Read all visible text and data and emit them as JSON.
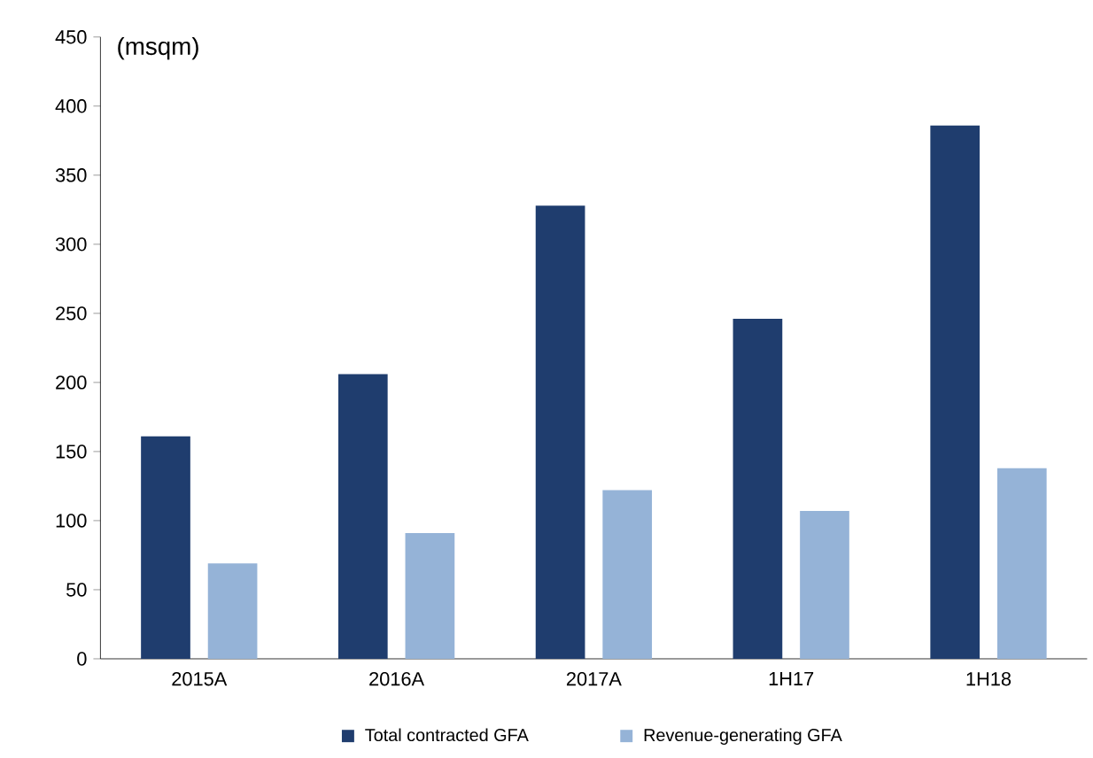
{
  "chart_data": {
    "type": "bar",
    "ylabel": "(msqm)",
    "categories": [
      "2015A",
      "2016A",
      "2017A",
      "1H17",
      "1H18"
    ],
    "series": [
      {
        "name": "Total contracted GFA",
        "color": "#1f3d6e",
        "values": [
          161,
          206,
          328,
          246,
          386
        ]
      },
      {
        "name": "Revenue-generating GFA",
        "color": "#95b3d7",
        "values": [
          69,
          91,
          122,
          107,
          138
        ]
      }
    ],
    "ylim": [
      0,
      450
    ],
    "yticks": [
      0,
      50,
      100,
      150,
      200,
      250,
      300,
      350,
      400,
      450
    ],
    "grid": false,
    "legend": "bottom"
  }
}
